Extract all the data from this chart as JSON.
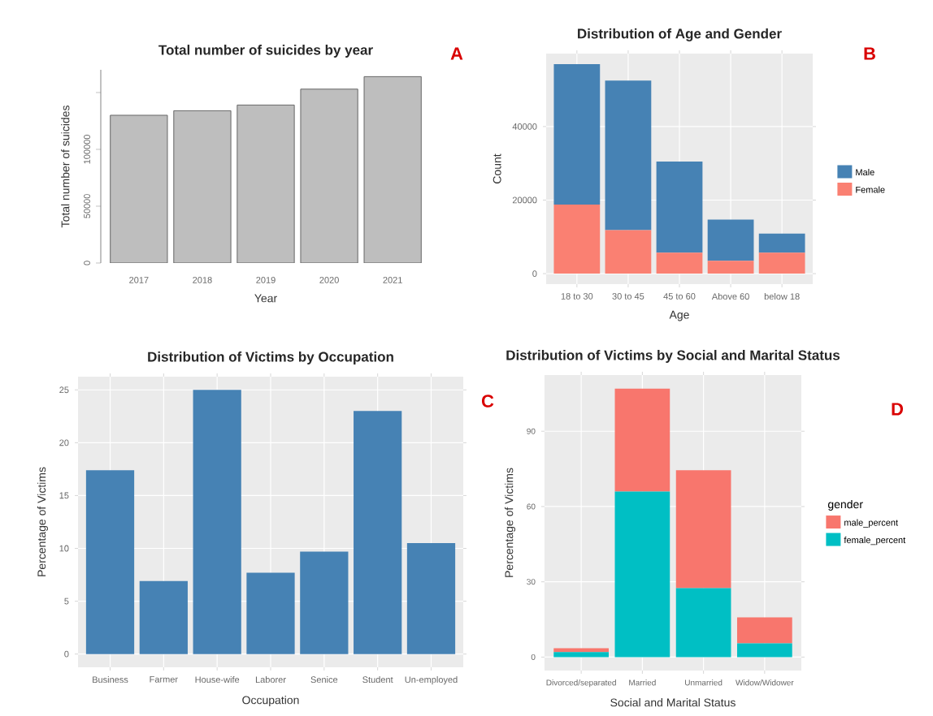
{
  "chart_data": [
    {
      "type": "bar",
      "title": "Total number of suicides by year",
      "xlabel": "Year",
      "ylabel": "Total number of suicides",
      "categories": [
        "2017",
        "2018",
        "2019",
        "2020",
        "2021"
      ],
      "values": [
        130000,
        134000,
        139000,
        153000,
        164000
      ],
      "color": "#bebebe",
      "ylim": [
        0,
        170000
      ],
      "yticks": [
        0,
        50000,
        100000,
        {
          "value": 150000,
          "label": null
        }
      ],
      "annotations": [
        "A"
      ]
    },
    {
      "type": "bar",
      "title": "Distribution of Age and Gender",
      "xlabel": "Age",
      "ylabel": "Count",
      "categories": [
        "18 to 30",
        "30 to 45",
        "45 to 60",
        "Above 60",
        "below 18"
      ],
      "stacked": true,
      "series": [
        {
          "name": "Female",
          "color": "#fa8072",
          "values": [
            18800,
            11800,
            5700,
            3500,
            5700
          ]
        },
        {
          "name": "Male",
          "color": "#4682b4",
          "values": [
            38200,
            40700,
            24800,
            11200,
            5200
          ]
        }
      ],
      "ylim": [
        -2850,
        59850
      ],
      "yticks": [
        0,
        20000,
        40000
      ],
      "grid": true,
      "legend": "right",
      "annotations": [
        "B"
      ]
    },
    {
      "type": "bar",
      "title": "Distribution of Victims by Occupation",
      "xlabel": "Occupation",
      "ylabel": "Percentage of Victims",
      "categories": [
        "Business",
        "Farmer",
        "House-wife",
        "Laborer",
        "Senice",
        "Student",
        "Un-employed"
      ],
      "values": [
        17.4,
        6.9,
        25.0,
        7.7,
        9.7,
        23.0,
        10.5
      ],
      "color": "#4682b4",
      "ylim": [
        -1.25,
        26.25
      ],
      "yticks": [
        0,
        5,
        10,
        15,
        20,
        25
      ],
      "grid": true,
      "annotations": [
        "C"
      ]
    },
    {
      "type": "bar",
      "title": "Distribution of Victims by Social and Marital Status",
      "xlabel": "Social and Marital Status",
      "ylabel": "Percentage of Victims",
      "categories": [
        "Divorced/separated",
        "Married",
        "Unmarried",
        "Widow/Widower"
      ],
      "stacked": true,
      "series": [
        {
          "name": "female_percent",
          "color": "#00bfc4",
          "values": [
            2,
            66,
            27.5,
            5.5
          ]
        },
        {
          "name": "male_percent",
          "color": "#f8766d",
          "values": [
            1.5,
            41,
            47,
            10.3
          ]
        }
      ],
      "ylim": [
        -5.35,
        112.4
      ],
      "yticks": [
        0,
        30,
        60,
        90
      ],
      "grid": true,
      "legend": "right",
      "legend_title": "gender",
      "annotations": [
        "D"
      ]
    }
  ]
}
